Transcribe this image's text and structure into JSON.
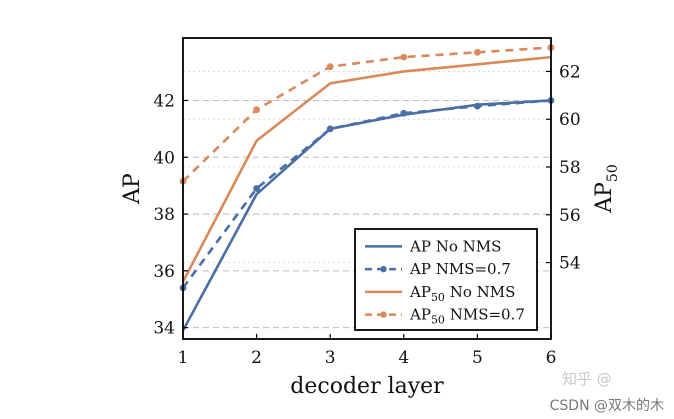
{
  "chart_data": {
    "type": "line",
    "title": "",
    "xlabel": "decoder layer",
    "ylabel": "AP",
    "ylabel_right_base": "AP",
    "ylabel_right_sub": "50",
    "x": [
      1,
      2,
      3,
      4,
      5,
      6
    ],
    "xlim": [
      1,
      6
    ],
    "ylim": [
      33.6,
      44.2
    ],
    "ylim_right": [
      50.8,
      63.4
    ],
    "yticks": [
      34,
      36,
      38,
      40,
      42
    ],
    "yticks_right": [
      54,
      56,
      58,
      60,
      62
    ],
    "grid": true,
    "legend_position": "bottom-right",
    "series": [
      {
        "name": "AP No NMS",
        "label_base": "AP",
        "label_sub": "",
        "label_rest": " No NMS",
        "axis": "left",
        "color": "#4a6fa5",
        "style": "solid",
        "marker": false,
        "values": [
          33.9,
          38.7,
          41.0,
          41.5,
          41.85,
          42.0
        ]
      },
      {
        "name": "AP NMS=0.7",
        "label_base": "AP",
        "label_sub": "",
        "label_rest": " NMS=0.7",
        "axis": "left",
        "color": "#4a6fa5",
        "style": "dashed",
        "marker": true,
        "values": [
          35.4,
          38.9,
          41.0,
          41.55,
          41.8,
          42.0
        ]
      },
      {
        "name": "AP50 No NMS",
        "label_base": "AP",
        "label_sub": "50",
        "label_rest": " No NMS",
        "axis": "right",
        "color": "#d9895a",
        "style": "solid",
        "marker": false,
        "values": [
          53.2,
          59.1,
          61.5,
          62.0,
          62.3,
          62.6
        ]
      },
      {
        "name": "AP50 NMS=0.7",
        "label_base": "AP",
        "label_sub": "50",
        "label_rest": " NMS=0.7",
        "axis": "right",
        "color": "#d9895a",
        "style": "dashed",
        "marker": true,
        "values": [
          57.4,
          60.4,
          62.2,
          62.6,
          62.8,
          63.0
        ]
      }
    ]
  },
  "watermark": {
    "zhihu": "知乎 @",
    "csdn": "CSDN @双木的木"
  }
}
